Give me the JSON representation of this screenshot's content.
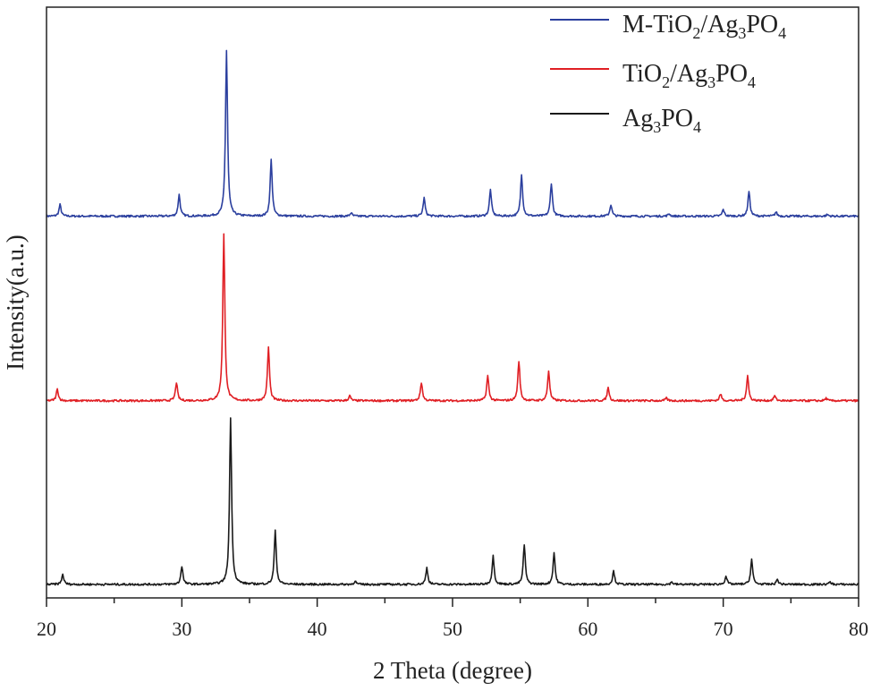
{
  "chart_data": {
    "type": "line",
    "xlabel": "2 Theta (degree)",
    "ylabel": "Intensity(a.u.)",
    "xlim": [
      20,
      80
    ],
    "x_ticks": [
      "20",
      "30",
      "40",
      "50",
      "60",
      "70",
      "80"
    ],
    "grid": false,
    "legend_position": "top-right",
    "series": [
      {
        "name": "M-TiO2/Ag3PO4",
        "legend": {
          "base": "M-TiO",
          "sub1": "2",
          "mid": "/Ag",
          "sub2": "3",
          "tail": "PO",
          "sub3": "4"
        },
        "color": "#2b3f9e",
        "baseline": 0.25,
        "peaks": [
          {
            "x": 21.0,
            "h": 7
          },
          {
            "x": 29.8,
            "h": 13
          },
          {
            "x": 33.3,
            "h": 100
          },
          {
            "x": 36.6,
            "h": 34
          },
          {
            "x": 42.5,
            "h": 2
          },
          {
            "x": 47.9,
            "h": 11
          },
          {
            "x": 52.8,
            "h": 16
          },
          {
            "x": 55.1,
            "h": 25
          },
          {
            "x": 57.3,
            "h": 20
          },
          {
            "x": 61.7,
            "h": 7
          },
          {
            "x": 66.0,
            "h": 1.5
          },
          {
            "x": 70.0,
            "h": 4
          },
          {
            "x": 71.9,
            "h": 15
          },
          {
            "x": 73.9,
            "h": 2.5
          },
          {
            "x": 77.7,
            "h": 1
          }
        ]
      },
      {
        "name": "TiO2/Ag3PO4",
        "legend": {
          "base": "TiO",
          "sub1": "2",
          "mid": "/Ag",
          "sub2": "3",
          "tail": "PO",
          "sub3": "4"
        },
        "color": "#e01f24",
        "baseline": 0.15,
        "peaks": [
          {
            "x": 20.8,
            "h": 7
          },
          {
            "x": 29.6,
            "h": 11
          },
          {
            "x": 33.1,
            "h": 100
          },
          {
            "x": 36.4,
            "h": 32
          },
          {
            "x": 42.4,
            "h": 3
          },
          {
            "x": 47.7,
            "h": 11
          },
          {
            "x": 52.6,
            "h": 15
          },
          {
            "x": 54.9,
            "h": 24
          },
          {
            "x": 57.1,
            "h": 18
          },
          {
            "x": 61.5,
            "h": 8
          },
          {
            "x": 65.8,
            "h": 1.5
          },
          {
            "x": 69.8,
            "h": 4
          },
          {
            "x": 71.8,
            "h": 15
          },
          {
            "x": 73.8,
            "h": 3
          },
          {
            "x": 77.6,
            "h": 1.5
          }
        ]
      },
      {
        "name": "Ag3PO4",
        "legend": {
          "base": "Ag",
          "sub1": "3",
          "mid": "PO",
          "sub2": "4",
          "tail": "",
          "sub3": ""
        },
        "color": "#1a1a1a",
        "baseline": 0.05,
        "peaks": [
          {
            "x": 21.2,
            "h": 6
          },
          {
            "x": 30.0,
            "h": 11
          },
          {
            "x": 33.6,
            "h": 100
          },
          {
            "x": 36.9,
            "h": 32
          },
          {
            "x": 42.8,
            "h": 2
          },
          {
            "x": 48.1,
            "h": 10
          },
          {
            "x": 53.0,
            "h": 17
          },
          {
            "x": 55.3,
            "h": 24
          },
          {
            "x": 57.5,
            "h": 19
          },
          {
            "x": 61.9,
            "h": 8
          },
          {
            "x": 66.2,
            "h": 1.5
          },
          {
            "x": 70.2,
            "h": 5
          },
          {
            "x": 72.1,
            "h": 15
          },
          {
            "x": 74.0,
            "h": 3
          },
          {
            "x": 77.9,
            "h": 1.5
          }
        ]
      }
    ]
  }
}
